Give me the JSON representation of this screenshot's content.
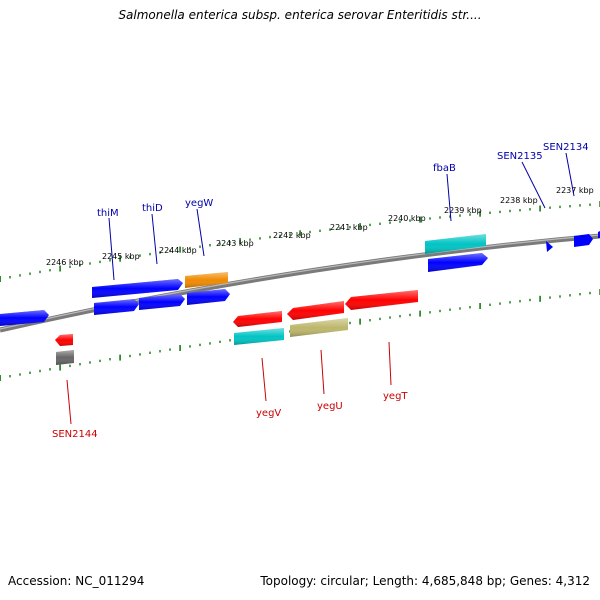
{
  "title": "Salmonella enterica subsp. enterica serovar Enteritidis str....",
  "footer": {
    "accession": "Accession: NC_011294",
    "stats": "Topology: circular; Length: 4,685,848 bp; Genes: 4,312"
  },
  "colors": {
    "blue": "#0000ff",
    "red": "#ff0000",
    "orange": "#f08a00",
    "cyan": "#00c4c4",
    "khaki": "#bdb76b",
    "gray": "#666666",
    "backbone": "#7a7a7a",
    "ticks": "#2e8b2e",
    "forward_label": "#0000aa",
    "reverse_label": "#cc0000"
  },
  "scale_labels": [
    "2246 kbp",
    "2245 kbp",
    "2244 kbp",
    "2243 kbp",
    "2242 kbp",
    "2241 kbp",
    "2240 kbp",
    "2239 kbp",
    "2238 kbp",
    "2237 kbp"
  ],
  "forward_gene_labels": [
    "thiM",
    "thiD",
    "yegW",
    "fbaB",
    "SEN2135",
    "SEN2134"
  ],
  "reverse_gene_labels": [
    "SEN2144",
    "yegV",
    "yegU",
    "yegT"
  ]
}
